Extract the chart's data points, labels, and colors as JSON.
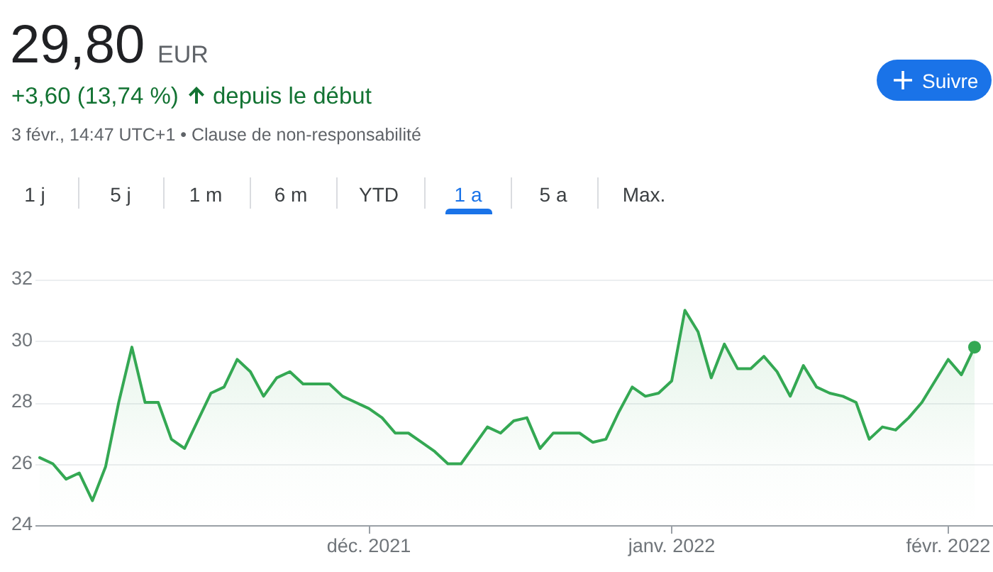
{
  "chart_data": {
    "type": "area",
    "title": "29,80",
    "annotations": [
      "EUR",
      "+3,60 (13,74 %)",
      "depuis le début",
      "3 févr., 14:47 UTC+1 • Clause de non-responsabilité",
      "1 j",
      "5 j",
      "1 m",
      "6 m",
      "YTD",
      "1 a",
      "5 a",
      "Max.",
      "Suivre"
    ],
    "categories": [
      null,
      null,
      null,
      null,
      null,
      null,
      null,
      null,
      null,
      null,
      null,
      null,
      null,
      null,
      null,
      null,
      null,
      null,
      null,
      null,
      null,
      null,
      null,
      null,
      null,
      "déc. 2021",
      null,
      null,
      null,
      null,
      null,
      null,
      null,
      null,
      null,
      null,
      null,
      null,
      null,
      null,
      null,
      null,
      null,
      null,
      null,
      null,
      null,
      null,
      "janv. 2022",
      null,
      null,
      null,
      null,
      null,
      null,
      null,
      null,
      null,
      null,
      null,
      null,
      null,
      null,
      null,
      null,
      null,
      null,
      null,
      null,
      "févr. 2022",
      null,
      null
    ],
    "series": [
      {
        "color": "#34a853",
        "values": [
          26.2,
          26.0,
          25.5,
          25.7,
          24.8,
          25.9,
          28.0,
          29.8,
          28.0,
          28.0,
          26.8,
          26.5,
          27.4,
          28.3,
          28.5,
          29.4,
          29.0,
          28.2,
          28.8,
          29.0,
          28.6,
          28.6,
          28.6,
          28.2,
          28.0,
          27.8,
          27.5,
          27.0,
          27.0,
          26.7,
          26.4,
          26.0,
          26.0,
          26.6,
          27.2,
          27.0,
          27.4,
          27.5,
          26.5,
          27.0,
          27.0,
          27.0,
          26.7,
          26.8,
          27.7,
          28.5,
          28.2,
          28.3,
          28.7,
          31.0,
          30.3,
          28.8,
          29.9,
          29.1,
          29.1,
          29.5,
          29.0,
          28.2,
          29.2,
          28.5,
          28.3,
          28.2,
          28.0,
          26.8,
          27.2,
          27.1,
          27.5,
          28.0,
          28.7,
          29.4,
          28.9,
          29.8
        ]
      }
    ],
    "ylim": [
      24,
      32
    ],
    "yticks": [
      24,
      26,
      28,
      30,
      32
    ],
    "grid": "y",
    "marker": "none"
  }
}
